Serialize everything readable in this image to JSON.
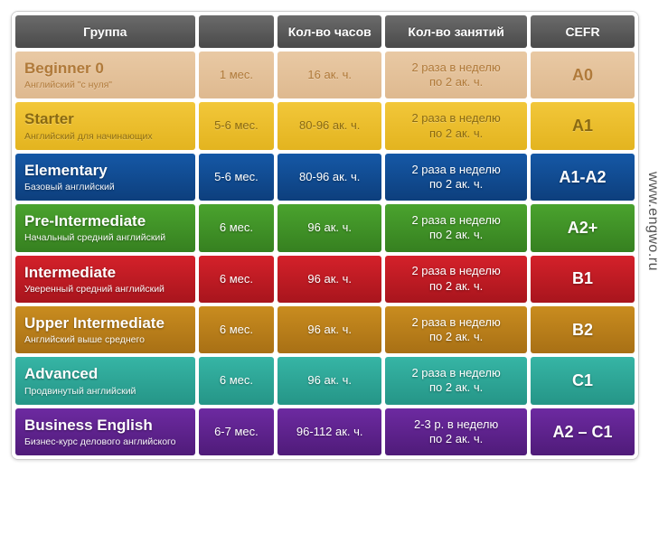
{
  "watermark": "www.engwo.ru",
  "headers": {
    "group": "Группа",
    "duration": "",
    "hours": "Кол-во часов",
    "lessons": "Кол-во занятий",
    "cefr": "CEFR"
  },
  "rows": [
    {
      "title": "Beginner 0",
      "subtitle": "Английский \"с нуля\"",
      "duration": "1 мес.",
      "hours": "16 ак. ч.",
      "lessons": "2 раза в неделю по 2 ак. ч.",
      "cefr": "A0",
      "color": "#e9c9a4",
      "text_color": "#b07a3a",
      "gradient_dark": "#deb98f"
    },
    {
      "title": "Starter",
      "subtitle": "Английский для начинающих",
      "duration": "5-6 мес.",
      "hours": "80-96 ак. ч.",
      "lessons": "2 раза в неделю по 2 ак. ч.",
      "cefr": "A1",
      "color": "#f2c73a",
      "text_color": "#8a6a12",
      "gradient_dark": "#e3b41f"
    },
    {
      "title": "Elementary",
      "subtitle": "Базовый английский",
      "duration": "5-6 мес.",
      "hours": "80-96 ак. ч.",
      "lessons": "2 раза в неделю по 2 ак. ч.",
      "cefr": "A1-A2",
      "color": "#1558a6",
      "text_color": "#ffffff",
      "gradient_dark": "#0d3f7d"
    },
    {
      "title": "Pre-Intermediate",
      "subtitle": "Начальный средний английский",
      "duration": "6 мес.",
      "hours": "96 ак. ч.",
      "lessons": "2 раза в неделю по 2 ак. ч.",
      "cefr": "A2+",
      "color": "#4aa32e",
      "text_color": "#ffffff",
      "gradient_dark": "#368020"
    },
    {
      "title": "Intermediate",
      "subtitle": "Уверенный средний английский",
      "duration": "6 мес.",
      "hours": "96 ак. ч.",
      "lessons": "2 раза в неделю по 2 ак. ч.",
      "cefr": "B1",
      "color": "#d4212a",
      "text_color": "#ffffff",
      "gradient_dark": "#a8151d"
    },
    {
      "title": "Upper Intermediate",
      "subtitle": "Английский выше среднего",
      "duration": "6 мес.",
      "hours": "96 ак. ч.",
      "lessons": "2 раза в неделю по 2 ак. ч.",
      "cefr": "B2",
      "color": "#c98c1f",
      "text_color": "#ffffff",
      "gradient_dark": "#a87015"
    },
    {
      "title": "Advanced",
      "subtitle": "Продвинутый английский",
      "duration": "6 мес.",
      "hours": "96 ак. ч.",
      "lessons": "2 раза в неделю по 2 ак. ч.",
      "cefr": "C1",
      "color": "#36b5a5",
      "text_color": "#ffffff",
      "gradient_dark": "#259587"
    },
    {
      "title": "Business English",
      "subtitle": "Бизнес-курс делового английского",
      "duration": "6-7 мес.",
      "hours": "96-112 ак. ч.",
      "lessons": "2-3 р. в неделю по 2 ак. ч.",
      "cefr": "A2 – C1",
      "color": "#6d2aa1",
      "text_color": "#ffffff",
      "gradient_dark": "#4f1b79"
    }
  ]
}
